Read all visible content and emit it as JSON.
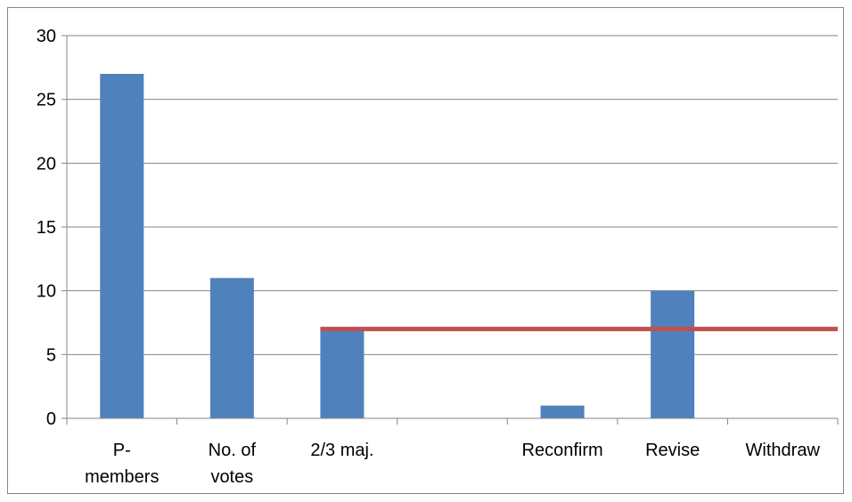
{
  "chart_data": {
    "type": "bar",
    "categories": [
      [
        "P-",
        "members"
      ],
      [
        "No. of",
        "votes"
      ],
      [
        "2/3 maj."
      ],
      [
        ""
      ],
      [
        "Reconfirm"
      ],
      [
        "Revise"
      ],
      [
        "Withdraw"
      ]
    ],
    "values": [
      27,
      11,
      7,
      null,
      1,
      10,
      null
    ],
    "reference_line": {
      "value": 7,
      "from_category": 2,
      "to_end": true
    },
    "title": "",
    "xlabel": "",
    "ylabel": "",
    "ylim": [
      0,
      30
    ],
    "yticks": [
      0,
      5,
      10,
      15,
      20,
      25,
      30
    ],
    "grid": true,
    "legend": "none",
    "colors": {
      "bar": "#4f81bd",
      "line": "#c0504d",
      "grid": "#868686"
    }
  }
}
